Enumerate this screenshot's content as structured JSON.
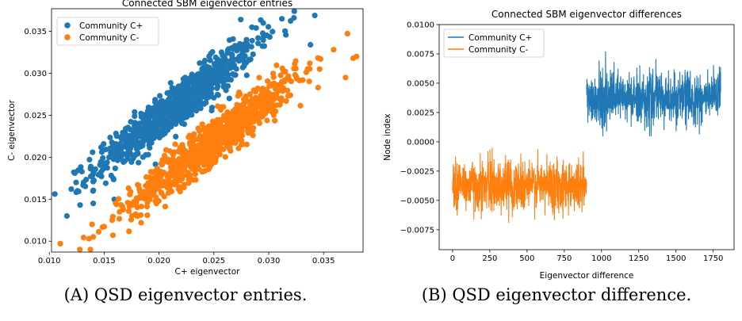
{
  "colors": {
    "c_plus": "#1f77b4",
    "c_minus": "#ff7f0e"
  },
  "panels": {
    "a": {
      "caption_label": "(A)",
      "caption_text": " QSD eigenvector entries."
    },
    "b": {
      "caption_label": "(B)",
      "caption_text": " QSD eigenvector difference."
    }
  },
  "chart_data": [
    {
      "type": "scatter",
      "title": "Connected SBM eigenvector entries",
      "xlabel": "C+ eigenvector",
      "ylabel": "C- eigenvector",
      "xlim": [
        0.0102,
        0.0386
      ],
      "ylim": [
        0.0087,
        0.0377
      ],
      "xticks": [
        0.01,
        0.015,
        0.02,
        0.025,
        0.03,
        0.035
      ],
      "xtick_labels": [
        "0.010",
        "0.015",
        "0.020",
        "0.025",
        "0.030",
        "0.035"
      ],
      "yticks": [
        0.01,
        0.015,
        0.02,
        0.025,
        0.03,
        0.035
      ],
      "ytick_labels": [
        "0.010",
        "0.015",
        "0.020",
        "0.025",
        "0.030",
        "0.035"
      ],
      "legend": "top-left",
      "series": [
        {
          "name": "Community C+",
          "color": "#1f77b4",
          "n_points": 900,
          "trend": {
            "x_center": 0.0215,
            "x_sd": 0.0036,
            "slope": 1.0,
            "intercept": 0.0045,
            "noise_sd": 0.0013
          },
          "values": [
            [
              0.0342,
              0.0369
            ],
            [
              0.0295,
              0.036
            ],
            [
              0.0312,
              0.0365
            ],
            [
              0.012,
              0.0162
            ],
            [
              0.0116,
              0.013
            ],
            [
              0.0128,
              0.0143
            ],
            [
              0.014,
              0.0145
            ],
            [
              0.0338,
              0.0334
            ]
          ]
        },
        {
          "name": "Community C-",
          "color": "#ff7f0e",
          "n_points": 900,
          "trend": {
            "x_center": 0.025,
            "x_sd": 0.0038,
            "slope": 1.0,
            "intercept": -0.003,
            "noise_sd": 0.0013
          },
          "values": [
            [
              0.011,
              0.0097
            ],
            [
              0.014,
              0.0105
            ],
            [
              0.0158,
              0.0107
            ],
            [
              0.0139,
              0.012
            ],
            [
              0.038,
              0.032
            ],
            [
              0.0377,
              0.0318
            ],
            [
              0.037,
              0.0295
            ],
            [
              0.0345,
              0.0283
            ]
          ]
        }
      ]
    },
    {
      "type": "line",
      "title": "Connected SBM eigenvector differences",
      "xlabel": "Eigenvector difference",
      "ylabel": "Node index",
      "xlim": [
        -90,
        1890
      ],
      "ylim": [
        -0.0092,
        0.01
      ],
      "xticks": [
        0,
        250,
        500,
        750,
        1000,
        1250,
        1500,
        1750
      ],
      "xtick_labels": [
        "0",
        "250",
        "500",
        "750",
        "1000",
        "1250",
        "1500",
        "1750"
      ],
      "yticks": [
        -0.0075,
        -0.005,
        -0.0025,
        0.0,
        0.0025,
        0.005,
        0.0075,
        0.01
      ],
      "ytick_labels": [
        "−0.0075",
        "−0.0050",
        "−0.0025",
        "0.0000",
        "0.0025",
        "0.0050",
        "0.0075",
        "0.0100"
      ],
      "legend": "top-left",
      "series": [
        {
          "name": "Community C+",
          "color": "#1f77b4",
          "x_range": [
            900,
            1800
          ],
          "mean": 0.0037,
          "sd": 0.0011,
          "min": 0.0005,
          "max": 0.009
        },
        {
          "name": "Community C-",
          "color": "#ff7f0e",
          "x_range": [
            0,
            900
          ],
          "mean": -0.0037,
          "sd": 0.0011,
          "min": -0.009,
          "max": 0.001
        }
      ]
    }
  ]
}
